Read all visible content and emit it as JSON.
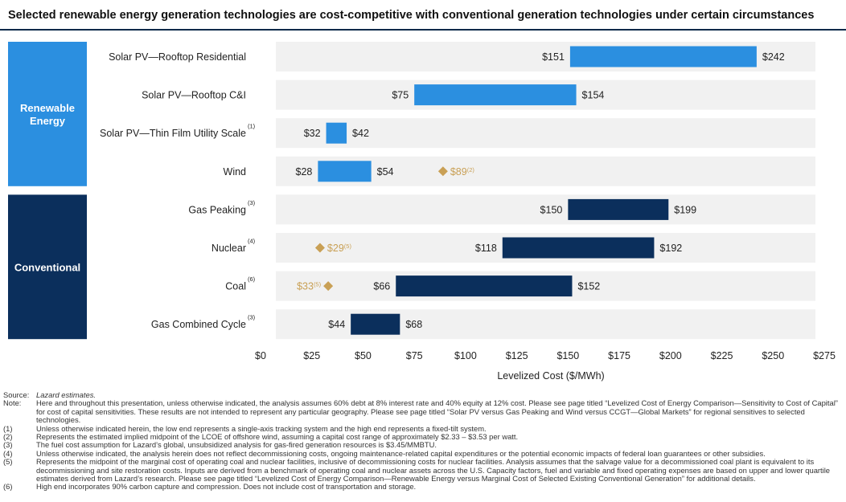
{
  "title": "Selected renewable energy generation technologies are cost-competitive with conventional generation technologies under certain circumstances",
  "chart_data": {
    "type": "bar",
    "orientation": "horizontal-floating",
    "xlabel": "Levelized Cost ($/MWh)",
    "xlim": [
      0,
      275
    ],
    "xticks": [
      "$0",
      "$25",
      "$50",
      "$75",
      "$100",
      "$125",
      "$150",
      "$175",
      "$200",
      "$225",
      "$250",
      "$275"
    ],
    "groups": [
      {
        "label": "Renewable Energy",
        "lines": [
          "Renewable",
          "Energy"
        ],
        "color": "#2b8fe0"
      },
      {
        "label": "Conventional",
        "lines": [
          "Conventional"
        ],
        "color": "#0b2f5c"
      }
    ],
    "categories": [
      {
        "name": "Solar PV—Rooftop Residential",
        "note": "",
        "group": 0,
        "low": 151,
        "high": 242,
        "low_label": "$151",
        "high_label": "$242"
      },
      {
        "name": "Solar PV—Rooftop C&I",
        "note": "",
        "group": 0,
        "low": 75,
        "high": 154,
        "low_label": "$75",
        "high_label": "$154"
      },
      {
        "name": "Solar PV—Thin Film Utility Scale",
        "note": "(1)",
        "group": 0,
        "low": 32,
        "high": 42,
        "low_label": "$32",
        "high_label": "$42"
      },
      {
        "name": "Wind",
        "note": "",
        "group": 0,
        "low": 28,
        "high": 54,
        "low_label": "$28",
        "high_label": "$54",
        "marker": {
          "value": 89,
          "label": "$89",
          "note": "(2)",
          "side": "right"
        }
      },
      {
        "name": "Gas Peaking",
        "note": "(3)",
        "group": 1,
        "low": 150,
        "high": 199,
        "low_label": "$150",
        "high_label": "$199"
      },
      {
        "name": "Nuclear",
        "note": "(4)",
        "group": 1,
        "low": 118,
        "high": 192,
        "low_label": "$118",
        "high_label": "$192",
        "marker": {
          "value": 29,
          "label": "$29",
          "note": "(5)",
          "side": "right"
        }
      },
      {
        "name": "Coal",
        "note": "(6)",
        "group": 1,
        "low": 66,
        "high": 152,
        "low_label": "$66",
        "high_label": "$152",
        "marker": {
          "value": 33,
          "label": "$33",
          "note": "(5)",
          "side": "left"
        }
      },
      {
        "name": "Gas Combined Cycle",
        "note": "(3)",
        "group": 1,
        "low": 44,
        "high": 68,
        "low_label": "$44",
        "high_label": "$68"
      }
    ],
    "marker_color": "#c9a055"
  },
  "footnotes": {
    "source_label": "Source:",
    "source_text": "Lazard estimates.",
    "items": [
      {
        "k": "Note:",
        "v": "Here and throughout this presentation, unless otherwise indicated, the analysis assumes 60% debt at 8% interest rate and 40% equity at 12% cost. Please see page titled “Levelized Cost of Energy Comparison—Sensitivity to Cost of Capital” for cost of capital sensitivities. These results are not intended to represent any particular geography. Please see page titled “Solar PV versus Gas Peaking and Wind versus CCGT—Global Markets” for regional sensitives to selected technologies."
      },
      {
        "k": "(1)",
        "v": "Unless otherwise indicated herein, the low end represents a single-axis tracking system and the high end represents a fixed-tilt system."
      },
      {
        "k": "(2)",
        "v": "Represents the estimated implied midpoint of the LCOE of offshore wind, assuming a capital cost range of approximately $2.33 – $3.53 per watt."
      },
      {
        "k": "(3)",
        "v": "The fuel cost assumption for Lazard’s global, unsubsidized analysis for gas-fired generation resources is $3.45/MMBTU."
      },
      {
        "k": "(4)",
        "v": "Unless otherwise indicated, the analysis herein does not reflect decommissioning costs, ongoing maintenance-related capital expenditures or the potential economic impacts of federal loan guarantees or other subsidies."
      },
      {
        "k": "(5)",
        "v": "Represents the midpoint of the marginal cost of operating coal and nuclear facilities, inclusive of decommissioning costs for nuclear facilities. Analysis assumes that the salvage value for a decommissioned coal plant is equivalent to its decommissioning and site restoration costs. Inputs are derived from a benchmark of operating coal and nuclear assets across the U.S. Capacity factors, fuel and variable and fixed operating expenses are based on upper and lower quartile estimates derived from Lazard’s research. Please see page titled “Levelized Cost of Energy Comparison—Renewable Energy versus Marginal Cost of Selected Existing Conventional Generation” for additional details."
      },
      {
        "k": "(6)",
        "v": "High end incorporates 90% carbon capture and compression. Does not include cost of transportation and storage."
      }
    ]
  }
}
